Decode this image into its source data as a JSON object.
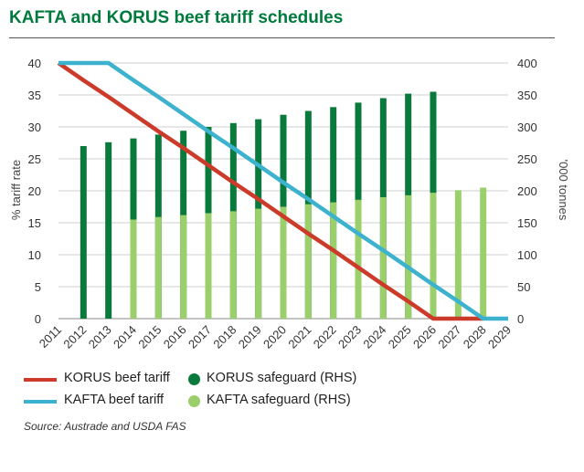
{
  "title": "KAFTA and KORUS beef tariff schedules",
  "source": "Source: Austrade and USDA FAS",
  "colors": {
    "title": "#007a3d",
    "korus_tariff": "#cc3a2a",
    "kafta_tariff": "#3cb2cf",
    "korus_safeguard": "#0a7a3c",
    "kafta_safeguard": "#9bcf6b",
    "grid": "#cfcfcf"
  },
  "legend": {
    "korus_tariff": "KORUS beef tariff",
    "korus_safeguard": "KORUS safeguard (RHS)",
    "kafta_tariff": "KAFTA beef tariff",
    "kafta_safeguard": "KAFTA safeguard (RHS)"
  },
  "chart_data": {
    "type": "bar+line",
    "categories": [
      "2011",
      "2012",
      "2013",
      "2014",
      "2015",
      "2016",
      "2017",
      "2018",
      "2019",
      "2020",
      "2021",
      "2022",
      "2023",
      "2024",
      "2025",
      "2026",
      "2027",
      "2028",
      "2029"
    ],
    "ylabel": "% tariff rate",
    "y2label": "'000 tonnes",
    "ylim": [
      0,
      40
    ],
    "y2lim": [
      0,
      400
    ],
    "yticks": [
      "0",
      "5",
      "10",
      "15",
      "20",
      "25",
      "30",
      "35",
      "40"
    ],
    "y2ticks": [
      "0",
      "50",
      "100",
      "150",
      "200",
      "250",
      "300",
      "350",
      "400"
    ],
    "lines": [
      {
        "name": "KORUS beef tariff",
        "axis": "left",
        "values": [
          40,
          37.3,
          34.7,
          32.0,
          29.3,
          26.7,
          24.0,
          21.3,
          18.7,
          16.0,
          13.3,
          10.7,
          8.0,
          5.3,
          2.7,
          0,
          0,
          0,
          null
        ]
      },
      {
        "name": "KAFTA beef tariff",
        "axis": "left",
        "values": [
          40,
          40,
          40,
          37.3,
          34.7,
          32.0,
          29.3,
          26.7,
          24.0,
          21.3,
          18.7,
          16.0,
          13.3,
          10.7,
          8.0,
          5.3,
          2.7,
          0,
          0
        ]
      }
    ],
    "bars": [
      {
        "name": "KORUS safeguard (RHS)",
        "axis": "right",
        "values": [
          null,
          270,
          276,
          282,
          288,
          294,
          300,
          306,
          312,
          319,
          325,
          331,
          338,
          345,
          352,
          355,
          null,
          null,
          null
        ]
      },
      {
        "name": "KAFTA safeguard (RHS)",
        "axis": "right",
        "values": [
          null,
          null,
          null,
          155,
          159,
          162,
          165,
          168,
          172,
          175,
          179,
          182,
          186,
          190,
          193,
          197,
          201,
          205,
          null
        ]
      }
    ]
  }
}
